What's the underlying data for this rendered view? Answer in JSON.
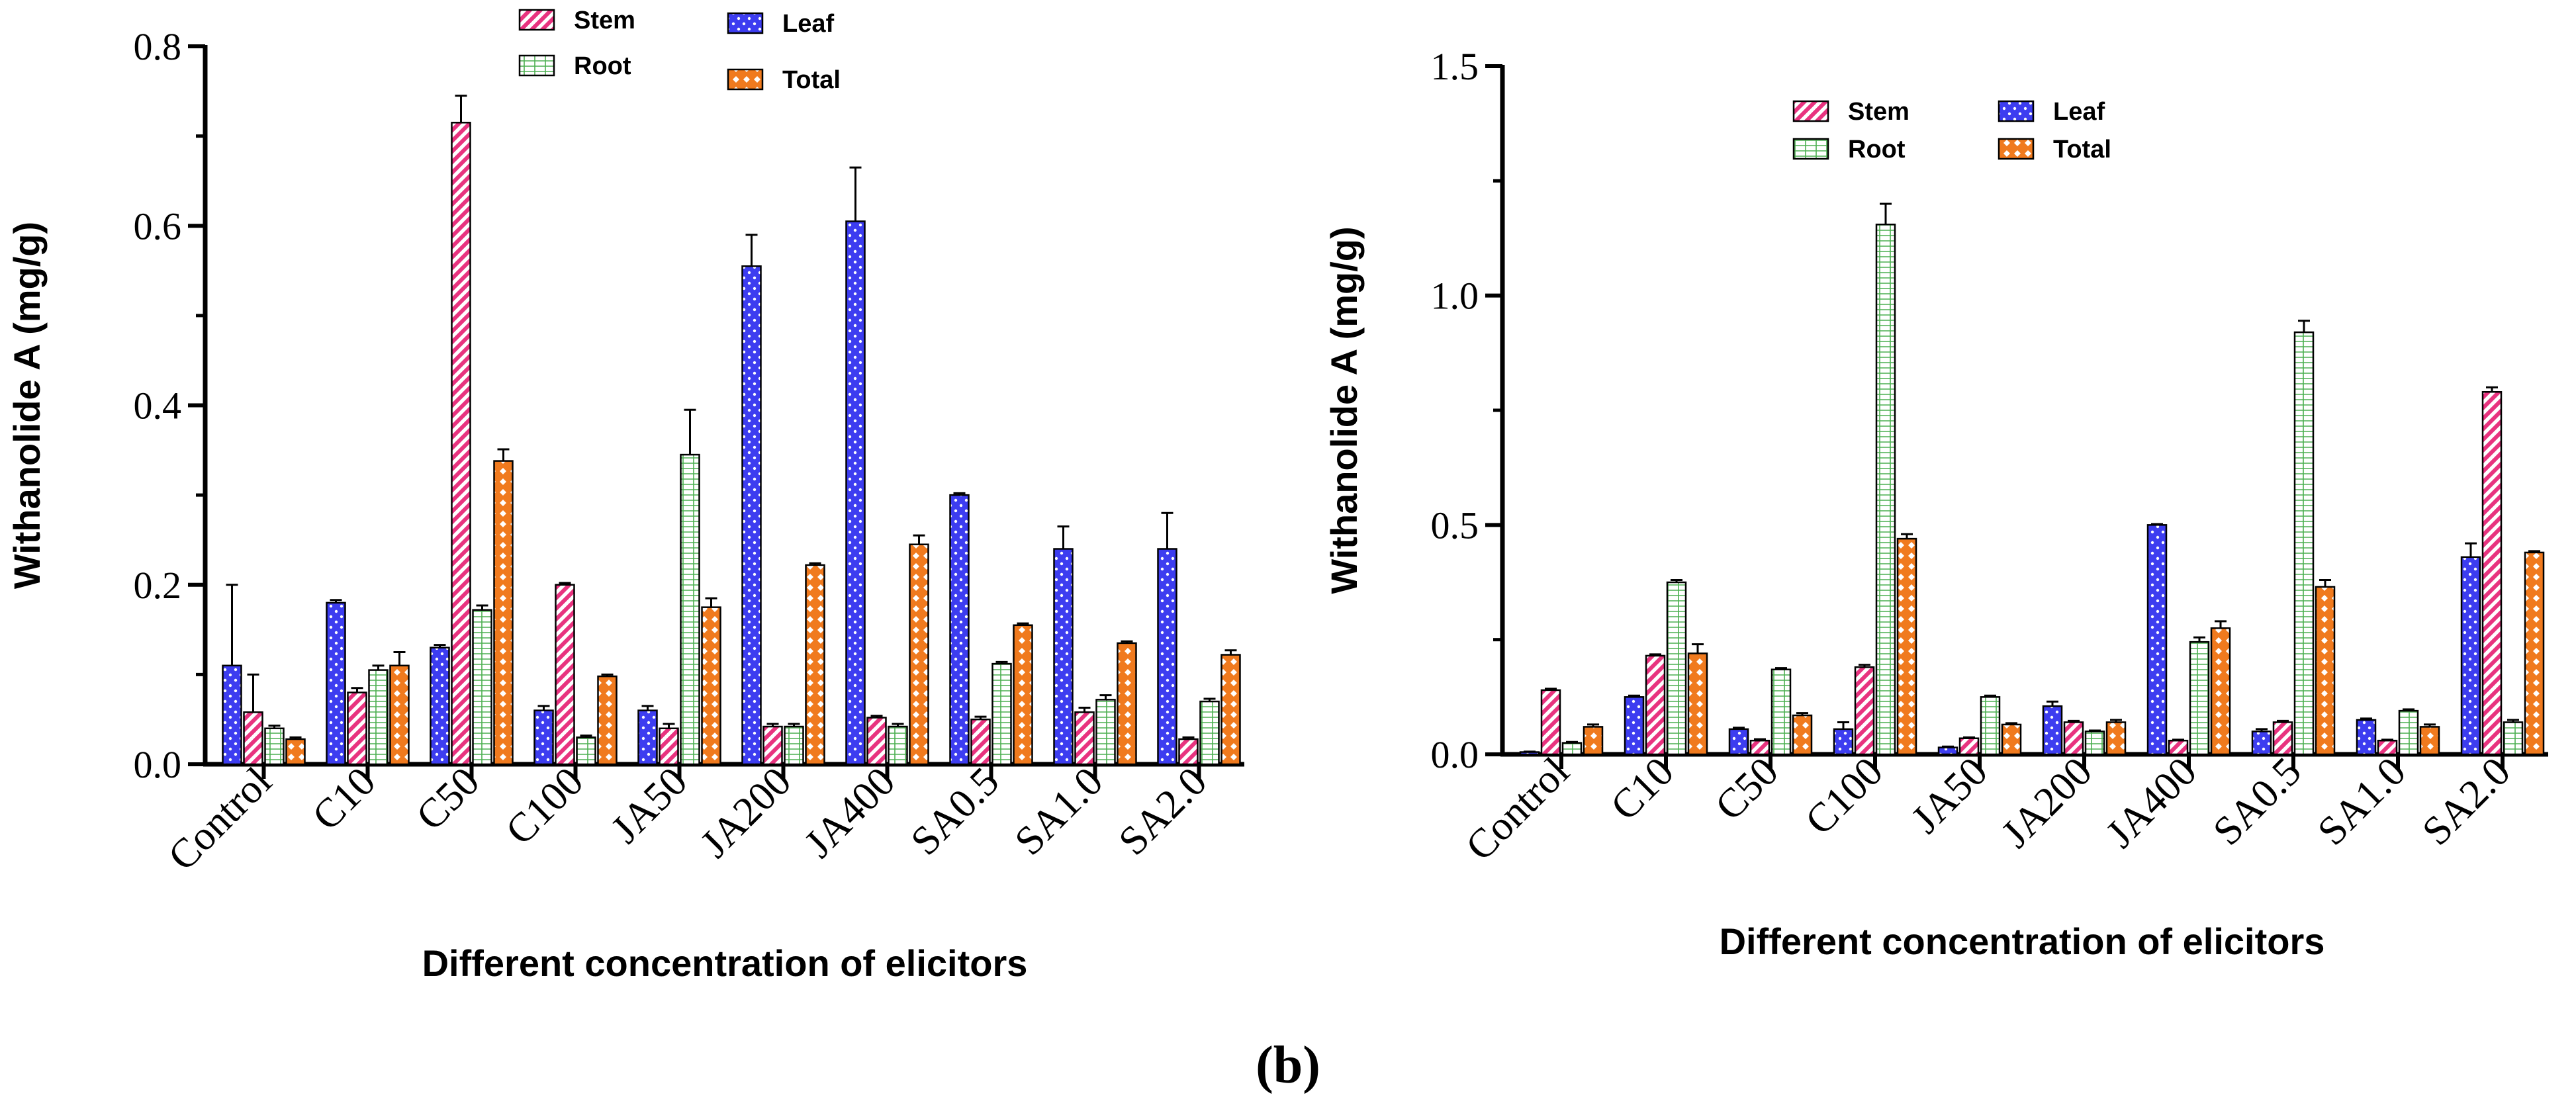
{
  "panel_label": "(b)",
  "colors": {
    "Stem": "#e8337f",
    "Leaf": "#3d3df0",
    "Root": "#4caf50",
    "Total": "#f07a1e"
  },
  "chart_data": [
    {
      "type": "bar",
      "ylabel": "Withanolide A (mg/g)",
      "xlabel": "Different concentration of elicitors",
      "ylim": [
        0,
        0.8
      ],
      "yticks": [
        "0.0",
        "0.2",
        "0.4",
        "0.6",
        "0.8"
      ],
      "ytick_values": [
        0,
        0.2,
        0.4,
        0.6,
        0.8
      ],
      "categories": [
        "Control",
        "C10",
        "C50",
        "C100",
        "JA50",
        "JA200",
        "JA400",
        "SA0.5",
        "SA1.0",
        "SA2.0"
      ],
      "legend": [
        "Stem",
        "Root",
        "Leaf",
        "Total"
      ],
      "bar_order": [
        "Leaf",
        "Stem",
        "Root",
        "Total"
      ],
      "series": [
        {
          "name": "Leaf",
          "pattern": "dots",
          "values": [
            0.11,
            0.18,
            0.13,
            0.06,
            0.06,
            0.555,
            0.605,
            0.3,
            0.24,
            0.24
          ],
          "errors": [
            0.09,
            0.003,
            0.003,
            0.005,
            0.005,
            0.035,
            0.06,
            0.002,
            0.025,
            0.04
          ]
        },
        {
          "name": "Stem",
          "pattern": "stripes",
          "values": [
            0.058,
            0.08,
            0.715,
            0.2,
            0.04,
            0.042,
            0.052,
            0.05,
            0.058,
            0.028
          ],
          "errors": [
            0.042,
            0.005,
            0.03,
            0.002,
            0.005,
            0.003,
            0.002,
            0.003,
            0.005,
            0.002
          ]
        },
        {
          "name": "Root",
          "pattern": "grid",
          "values": [
            0.04,
            0.105,
            0.172,
            0.03,
            0.345,
            0.042,
            0.042,
            0.112,
            0.072,
            0.07
          ],
          "errors": [
            0.003,
            0.005,
            0.005,
            0.002,
            0.05,
            0.003,
            0.003,
            0.002,
            0.005,
            0.003
          ]
        },
        {
          "name": "Total",
          "pattern": "diamonds",
          "values": [
            0.028,
            0.11,
            0.338,
            0.098,
            0.175,
            0.222,
            0.245,
            0.155,
            0.135,
            0.122
          ],
          "errors": [
            0.002,
            0.015,
            0.013,
            0.002,
            0.01,
            0.002,
            0.01,
            0.002,
            0.002,
            0.005
          ]
        }
      ]
    },
    {
      "type": "bar",
      "ylabel": "Withanolide A (mg/g)",
      "xlabel": "Different concentration of elicitors",
      "ylim": [
        0,
        1.5
      ],
      "yticks": [
        "0.0",
        "0.5",
        "1.0",
        "1.5"
      ],
      "ytick_values": [
        0,
        0.5,
        1.0,
        1.5
      ],
      "categories": [
        "Control",
        "C10",
        "C50",
        "C100",
        "JA50",
        "JA200",
        "JA400",
        "SA0.5",
        "SA1.0",
        "SA2.0"
      ],
      "legend": [
        "Stem",
        "Root",
        "Leaf",
        "Total"
      ],
      "bar_order": [
        "Leaf",
        "Stem",
        "Root",
        "Total"
      ],
      "series": [
        {
          "name": "Leaf",
          "pattern": "dots",
          "values": [
            0.005,
            0.125,
            0.055,
            0.055,
            0.015,
            0.105,
            0.5,
            0.05,
            0.075,
            0.43
          ],
          "errors": [
            0.001,
            0.003,
            0.003,
            0.015,
            0.002,
            0.01,
            0.002,
            0.005,
            0.003,
            0.03
          ]
        },
        {
          "name": "Stem",
          "pattern": "stripes",
          "values": [
            0.14,
            0.215,
            0.03,
            0.19,
            0.035,
            0.07,
            0.03,
            0.07,
            0.03,
            0.79
          ],
          "errors": [
            0.003,
            0.003,
            0.003,
            0.005,
            0.002,
            0.003,
            0.002,
            0.003,
            0.002,
            0.01
          ]
        },
        {
          "name": "Root",
          "pattern": "grid",
          "values": [
            0.025,
            0.375,
            0.185,
            1.155,
            0.125,
            0.05,
            0.245,
            0.92,
            0.095,
            0.07
          ],
          "errors": [
            0.002,
            0.005,
            0.003,
            0.045,
            0.003,
            0.002,
            0.01,
            0.025,
            0.003,
            0.005
          ]
        },
        {
          "name": "Total",
          "pattern": "diamonds",
          "values": [
            0.06,
            0.22,
            0.085,
            0.47,
            0.065,
            0.07,
            0.275,
            0.365,
            0.06,
            0.44
          ],
          "errors": [
            0.005,
            0.02,
            0.005,
            0.01,
            0.003,
            0.005,
            0.015,
            0.015,
            0.005,
            0.003
          ]
        }
      ]
    }
  ]
}
